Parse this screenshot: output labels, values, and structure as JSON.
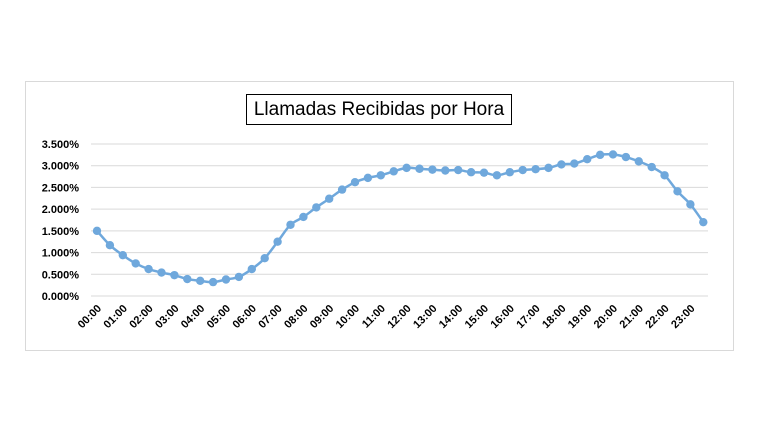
{
  "chart_data": {
    "type": "line",
    "title": "Llamadas Recibidas por Hora",
    "xlabel": "",
    "ylabel": "",
    "ylim": [
      0,
      3.5
    ],
    "y_ticks": [
      "0.000%",
      "0.500%",
      "1.000%",
      "1.500%",
      "2.000%",
      "2.500%",
      "3.000%",
      "3.500%"
    ],
    "x_ticks": [
      "00:00",
      "01:00",
      "02:00",
      "03:00",
      "04:00",
      "05:00",
      "06:00",
      "07:00",
      "08:00",
      "09:00",
      "10:00",
      "11:00",
      "12:00",
      "13:00",
      "14:00",
      "15:00",
      "16:00",
      "17:00",
      "18:00",
      "19:00",
      "20:00",
      "21:00",
      "22:00",
      "23:00"
    ],
    "x": [
      "00:00",
      "00:30",
      "01:00",
      "01:30",
      "02:00",
      "02:30",
      "03:00",
      "03:30",
      "04:00",
      "04:30",
      "05:00",
      "05:30",
      "06:00",
      "06:30",
      "07:00",
      "07:30",
      "08:00",
      "08:30",
      "09:00",
      "09:30",
      "10:00",
      "10:30",
      "11:00",
      "11:30",
      "12:00",
      "12:30",
      "13:00",
      "13:30",
      "14:00",
      "14:30",
      "15:00",
      "15:30",
      "16:00",
      "16:30",
      "17:00",
      "17:30",
      "18:00",
      "18:30",
      "19:00",
      "19:30",
      "20:00",
      "20:30",
      "21:00",
      "21:30",
      "22:00",
      "22:30",
      "23:00",
      "23:30"
    ],
    "values": [
      1.5,
      1.17,
      0.94,
      0.75,
      0.62,
      0.54,
      0.48,
      0.39,
      0.35,
      0.32,
      0.38,
      0.44,
      0.62,
      0.87,
      1.25,
      1.64,
      1.82,
      2.04,
      2.24,
      2.45,
      2.62,
      2.72,
      2.78,
      2.87,
      2.95,
      2.93,
      2.91,
      2.89,
      2.9,
      2.85,
      2.84,
      2.78,
      2.85,
      2.9,
      2.92,
      2.95,
      3.03,
      3.05,
      3.15,
      3.25,
      3.26,
      3.2,
      3.1,
      2.97,
      2.78,
      2.41,
      2.11,
      1.7
    ],
    "grid": true,
    "legend": "none",
    "line_color": "#6fa8dc",
    "grid_color": "#d9d9d9"
  }
}
